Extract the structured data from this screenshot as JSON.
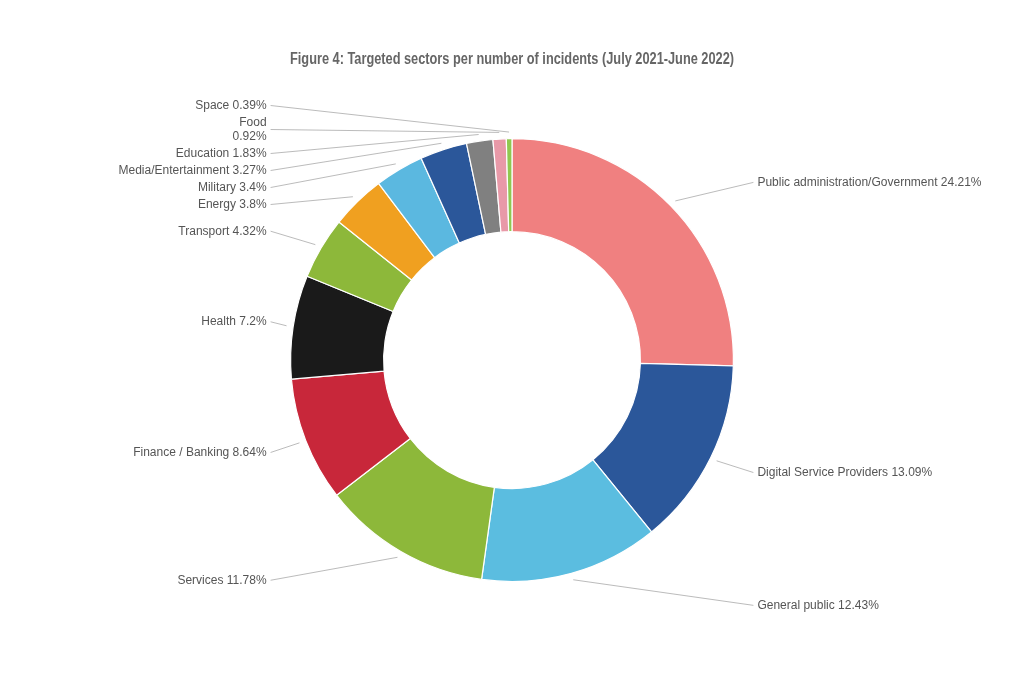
{
  "chart_data": {
    "type": "doughnut",
    "title": "Figure 4: Targeted sectors per number of incidents (July 2021-June 2022)",
    "categories": [
      "Public administration/Government 24.21%",
      "Digital Service Providers 13.09%",
      "General public 12.43%",
      "Services 11.78%",
      "Finance / Banking 8.64%",
      "Health 7.2%",
      "Transport 4.32%",
      "Energy 3.8%",
      "Military 3.4%",
      "Media/Entertainment 3.27%",
      "Education 1.83%",
      "Food\n0.92%",
      "Space 0.39%"
    ],
    "values": [
      24.21,
      13.09,
      12.43,
      11.78,
      8.64,
      7.2,
      4.32,
      3.8,
      3.4,
      3.27,
      1.83,
      0.92,
      0.39
    ],
    "colors": [
      "#f08080",
      "#2b579a",
      "#5bbde0",
      "#8db83a",
      "#c8273a",
      "#1a1a1a",
      "#8db83a",
      "#f0a020",
      "#5bb8e0",
      "#2b579a",
      "#808080",
      "#e899a8",
      "#90c850"
    ]
  }
}
